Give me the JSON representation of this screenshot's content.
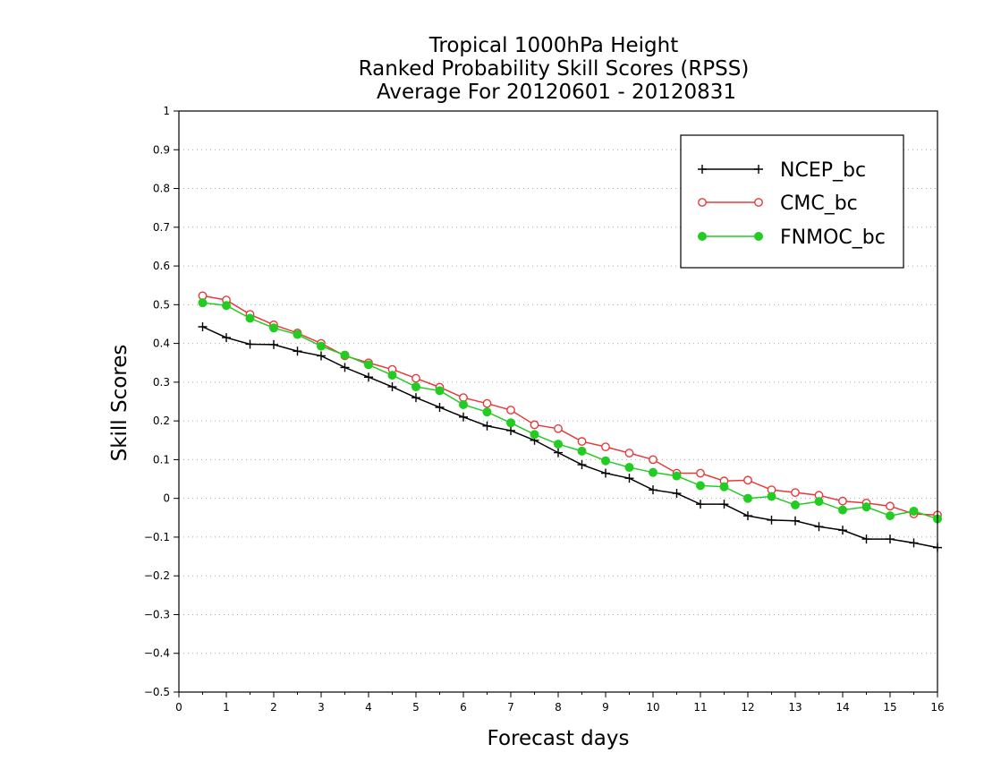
{
  "chart_data": {
    "type": "line",
    "title_lines": [
      "Tropical 1000hPa Height",
      "Ranked Probability Skill Scores (RPSS)",
      "Average For 20120601 - 20120831"
    ],
    "xlabel": "Forecast days",
    "ylabel": "Skill Scores",
    "xlim": [
      0,
      16
    ],
    "ylim": [
      -0.5,
      1
    ],
    "xticks": [
      0,
      1,
      2,
      3,
      4,
      5,
      6,
      7,
      8,
      9,
      10,
      11,
      12,
      13,
      14,
      15,
      16
    ],
    "yticks": [
      -0.5,
      -0.4,
      -0.3,
      -0.2,
      -0.1,
      0,
      0.1,
      0.2,
      0.3,
      0.4,
      0.5,
      0.6,
      0.7,
      0.8,
      0.9,
      1
    ],
    "ytick_labels": [
      "−0.5",
      "−0.4",
      "−0.3",
      "−0.2",
      "−0.1",
      "0",
      "0.1",
      "0.2",
      "0.3",
      "0.4",
      "0.5",
      "0.6",
      "0.7",
      "0.8",
      "0.9",
      "1"
    ],
    "grid": "horizontal dotted",
    "legend_position": "top-right",
    "x": [
      0.5,
      1,
      1.5,
      2,
      2.5,
      3,
      3.5,
      4,
      4.5,
      5,
      5.5,
      6,
      6.5,
      7,
      7.5,
      8,
      8.5,
      9,
      9.5,
      10,
      10.5,
      11,
      11.5,
      12,
      12.5,
      13,
      13.5,
      14,
      14.5,
      15,
      15.5,
      16
    ],
    "series": [
      {
        "name": "NCEP_bc",
        "color": "#000000",
        "marker": "plus",
        "values": [
          0.443,
          0.415,
          0.398,
          0.397,
          0.38,
          0.368,
          0.338,
          0.313,
          0.288,
          0.26,
          0.235,
          0.21,
          0.187,
          0.175,
          0.15,
          0.118,
          0.087,
          0.065,
          0.052,
          0.022,
          0.013,
          -0.015,
          -0.015,
          -0.045,
          -0.056,
          -0.058,
          -0.073,
          -0.082,
          -0.105,
          -0.105,
          -0.115,
          -0.127
        ]
      },
      {
        "name": "CMC_bc",
        "color": "#e8393a",
        "marker": "open-circle",
        "values": [
          0.523,
          0.512,
          0.475,
          0.448,
          0.427,
          0.4,
          0.368,
          0.35,
          0.333,
          0.31,
          0.287,
          0.26,
          0.245,
          0.228,
          0.19,
          0.18,
          0.147,
          0.133,
          0.117,
          0.1,
          0.065,
          0.065,
          0.045,
          0.047,
          0.022,
          0.015,
          0.008,
          -0.007,
          -0.012,
          -0.02,
          -0.04,
          -0.043
        ]
      },
      {
        "name": "FNMOC_bc",
        "color": "#22cc22",
        "marker": "filled-circle",
        "values": [
          0.505,
          0.498,
          0.465,
          0.44,
          0.423,
          0.393,
          0.37,
          0.345,
          0.318,
          0.288,
          0.278,
          0.242,
          0.223,
          0.195,
          0.165,
          0.14,
          0.122,
          0.097,
          0.08,
          0.067,
          0.058,
          0.033,
          0.03,
          0.0,
          0.005,
          -0.017,
          -0.008,
          -0.03,
          -0.022,
          -0.045,
          -0.033,
          -0.053
        ]
      }
    ]
  }
}
